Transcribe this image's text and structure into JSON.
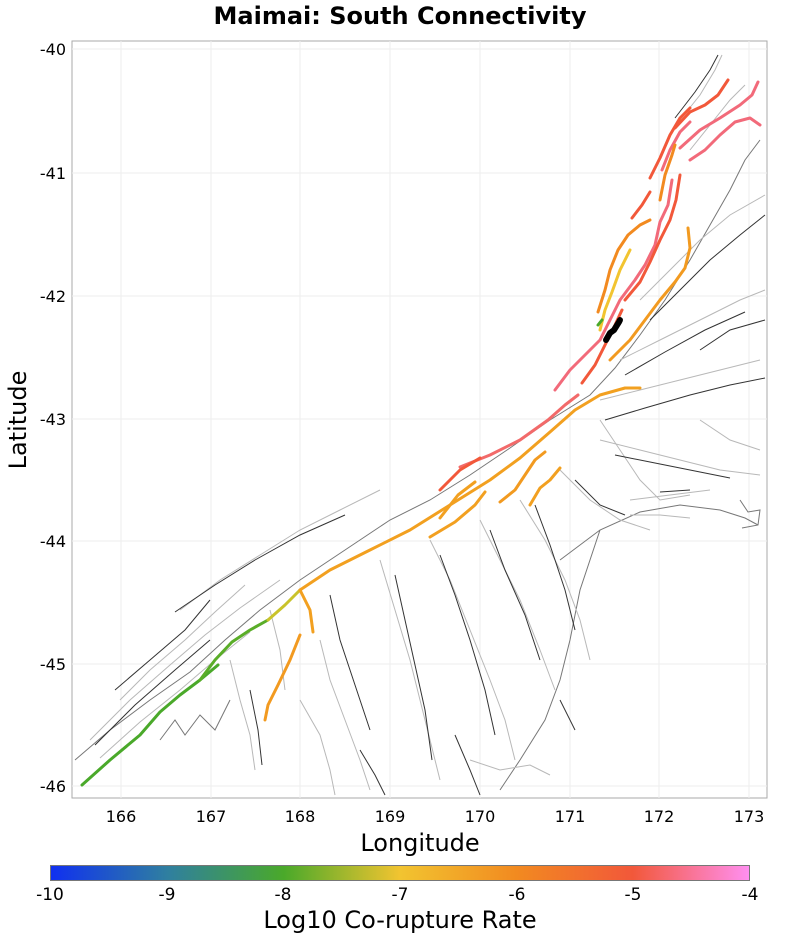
{
  "title": "Maimai: South Connectivity",
  "x_axis": {
    "label": "Longitude",
    "ticks": [
      "166",
      "167",
      "168",
      "169",
      "170",
      "171",
      "172",
      "173"
    ]
  },
  "y_axis": {
    "label": "Latitude",
    "ticks": [
      "-40",
      "-41",
      "-42",
      "-43",
      "-44",
      "-45",
      "-46"
    ]
  },
  "colorbar": {
    "label": "Log10 Co-rupture Rate",
    "ticks": [
      "-10",
      "-9",
      "-8",
      "-7",
      "-6",
      "-5",
      "-4"
    ],
    "stops": [
      "#1030f0",
      "#2f7fa0",
      "#4aa92a",
      "#f2c430",
      "#f28a20",
      "#f2583a",
      "#ff8ff0"
    ]
  },
  "colors": {
    "source_fault": "#000000",
    "background_trace": "#333333",
    "background_cell": "#b8b8b8",
    "grid": "#eeeeee"
  }
}
